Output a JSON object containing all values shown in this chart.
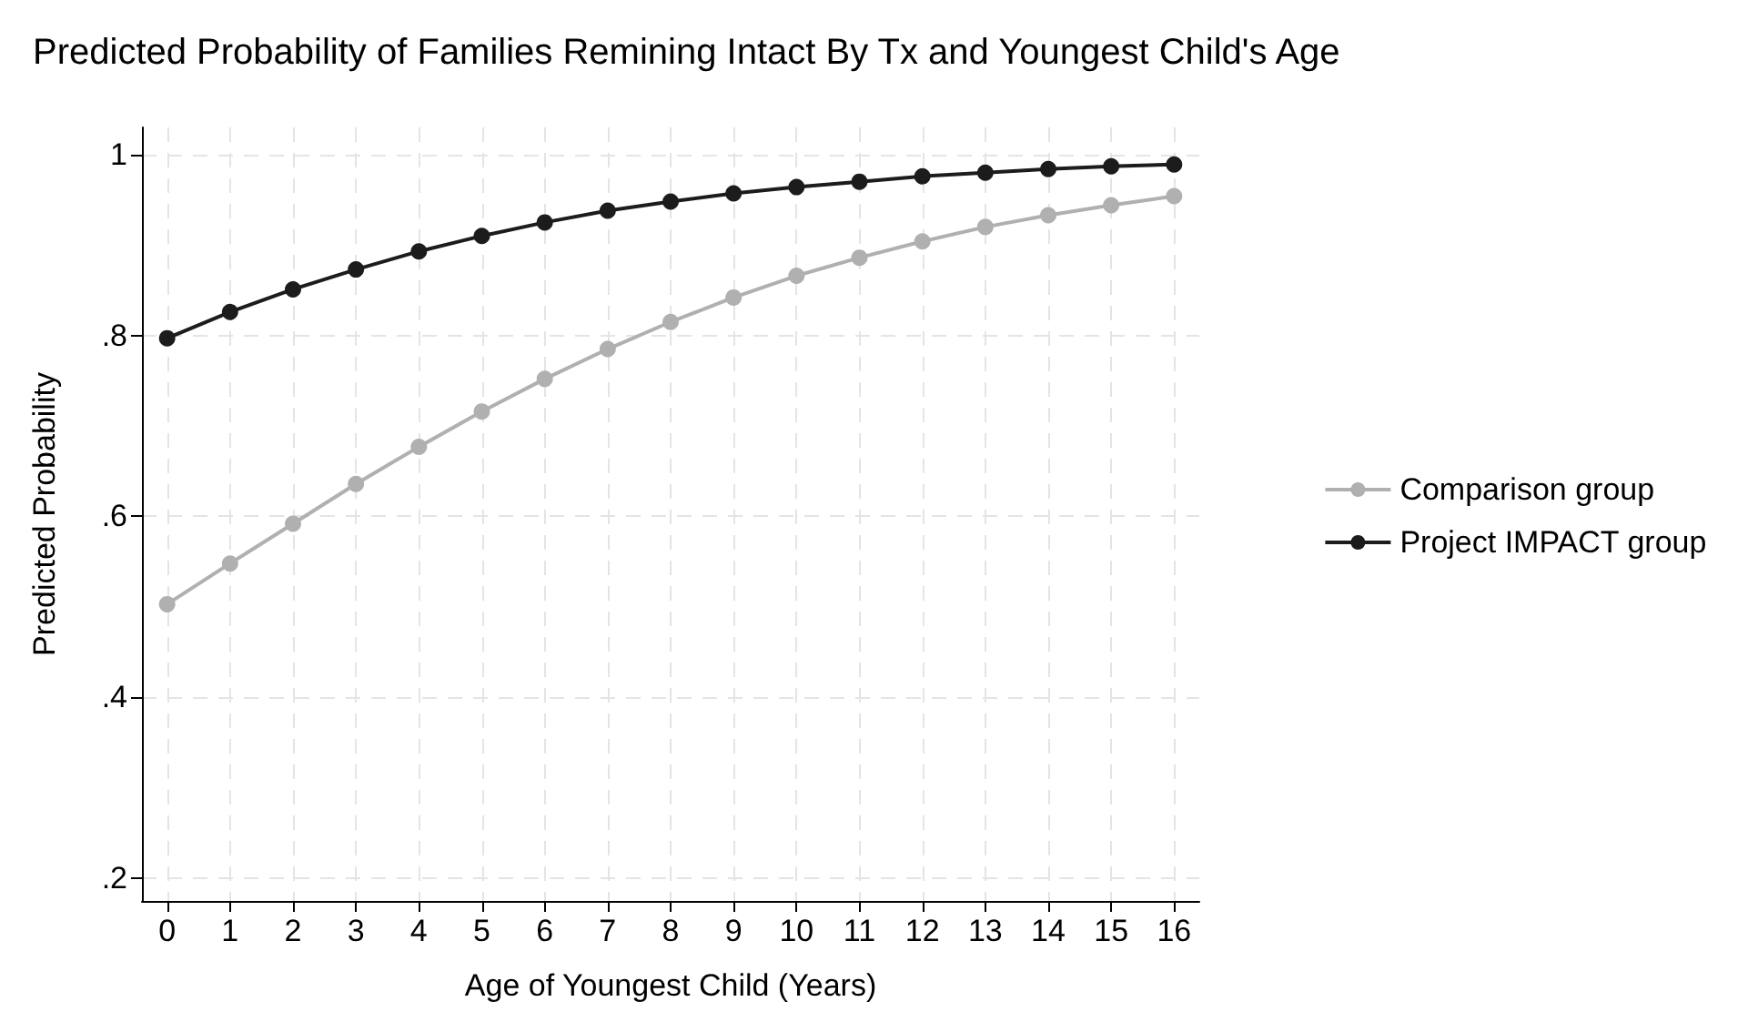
{
  "chart_data": {
    "type": "line",
    "title": "Predicted Probability of Families Remining Intact By Tx and Youngest Child's Age",
    "xlabel": "Age of Youngest Child (Years)",
    "ylabel": "Predicted Probability",
    "x": [
      0,
      1,
      2,
      3,
      4,
      5,
      6,
      7,
      8,
      9,
      10,
      11,
      12,
      13,
      14,
      15,
      16
    ],
    "series": [
      {
        "name": "Comparison group",
        "color": "#b0b0b0",
        "values": [
          0.503,
          0.548,
          0.592,
          0.636,
          0.677,
          0.716,
          0.752,
          0.785,
          0.815,
          0.842,
          0.866,
          0.886,
          0.904,
          0.92,
          0.933,
          0.944,
          0.954
        ]
      },
      {
        "name": "Project IMPACT group",
        "color": "#1c1c1c",
        "values": [
          0.797,
          0.826,
          0.851,
          0.873,
          0.893,
          0.91,
          0.925,
          0.938,
          0.948,
          0.957,
          0.964,
          0.97,
          0.976,
          0.98,
          0.984,
          0.987,
          0.989
        ]
      }
    ],
    "xlim": [
      -0.4,
      16.4
    ],
    "xticks": [
      0,
      1,
      2,
      3,
      4,
      5,
      6,
      7,
      8,
      9,
      10,
      11,
      12,
      13,
      14,
      15,
      16
    ],
    "ylim": [
      0.175,
      1.03
    ],
    "yticks": [
      {
        "value": 0.2,
        "label": ".2"
      },
      {
        "value": 0.4,
        "label": ".4"
      },
      {
        "value": 0.6,
        "label": ".6"
      },
      {
        "value": 0.8,
        "label": ".8"
      },
      1
    ],
    "grid": true,
    "legend": "right",
    "marker": "circle",
    "line_style": "solid"
  }
}
